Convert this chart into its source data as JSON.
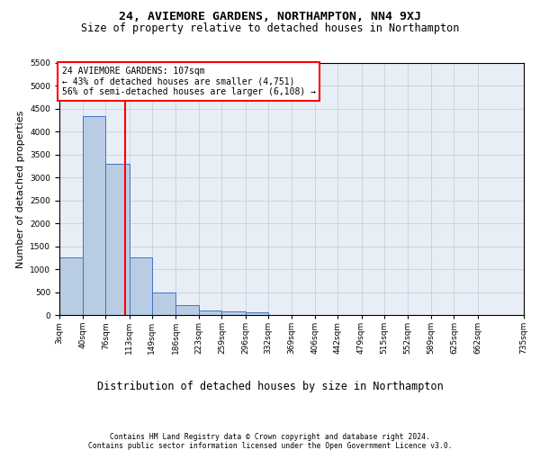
{
  "title1": "24, AVIEMORE GARDENS, NORTHAMPTON, NN4 9XJ",
  "title2": "Size of property relative to detached houses in Northampton",
  "xlabel": "Distribution of detached houses by size in Northampton",
  "ylabel": "Number of detached properties",
  "footnote": "Contains HM Land Registry data © Crown copyright and database right 2024.\nContains public sector information licensed under the Open Government Licence v3.0.",
  "annotation_line1": "24 AVIEMORE GARDENS: 107sqm",
  "annotation_line2": "← 43% of detached houses are smaller (4,751)",
  "annotation_line3": "56% of semi-detached houses are larger (6,108) →",
  "property_size": 107,
  "bar_values": [
    1260,
    4350,
    3300,
    1260,
    490,
    220,
    90,
    70,
    55,
    0,
    0,
    0,
    0,
    0,
    0,
    0,
    0,
    0,
    0
  ],
  "bin_edges": [
    3,
    40,
    76,
    113,
    149,
    186,
    223,
    259,
    296,
    332,
    369,
    406,
    442,
    479,
    515,
    552,
    589,
    625,
    662,
    735
  ],
  "tick_labels": [
    "3sqm",
    "40sqm",
    "76sqm",
    "113sqm",
    "149sqm",
    "186sqm",
    "223sqm",
    "259sqm",
    "296sqm",
    "332sqm",
    "369sqm",
    "406sqm",
    "442sqm",
    "479sqm",
    "515sqm",
    "552sqm",
    "589sqm",
    "625sqm",
    "662sqm",
    "735sqm"
  ],
  "bar_color": "#b8cce4",
  "bar_edge_color": "#4472c4",
  "vline_color": "#ff0000",
  "annotation_box_edge_color": "#ff0000",
  "background_color": "#ffffff",
  "axes_facecolor": "#e8eef5",
  "grid_color": "#c8d0dc",
  "ylim": [
    0,
    5500
  ],
  "yticks": [
    0,
    500,
    1000,
    1500,
    2000,
    2500,
    3000,
    3500,
    4000,
    4500,
    5000,
    5500
  ],
  "title1_fontsize": 9.5,
  "title2_fontsize": 8.5,
  "ylabel_fontsize": 8,
  "xlabel_fontsize": 8.5,
  "footnote_fontsize": 5.8,
  "annotation_fontsize": 7,
  "tick_fontsize": 6.5
}
